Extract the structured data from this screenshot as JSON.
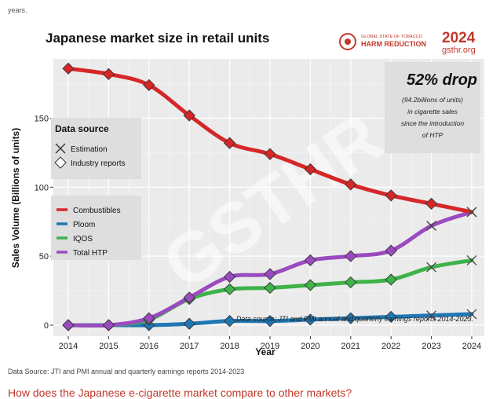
{
  "page": {
    "top_text": "years.",
    "source_line": "Data Source: JTI and PMI annual and quarterly earnings reports 2014-2023",
    "bottom_cut": "How does the Japanese e-cigarette market compare to other markets?"
  },
  "logo": {
    "line1": "GLOBAL STATE OF TOBACCO",
    "line2": "HARM REDUCTION",
    "year": "2024",
    "site": "gsthr.org",
    "watermark": "GSTHR"
  },
  "annotation": {
    "headline": "52% drop",
    "lines": [
      "(94.2billions of units)",
      "in cigarette sales",
      "since the introduction",
      "of HTP"
    ]
  },
  "legend_markers": {
    "title": "Data source",
    "items": [
      {
        "label": "Estimation",
        "icon": "x-mark-icon"
      },
      {
        "label": "Industry reports",
        "icon": "diamond-icon"
      }
    ]
  },
  "colors": {
    "combustibles": "#d62728",
    "ploom": "#1f77b4",
    "iqos": "#3fb24a",
    "total_htp": "#9b4bc0"
  },
  "chart_data": {
    "type": "line",
    "title": "Japanese market size in retail units",
    "xlabel": "Year",
    "ylabel": "Sales Volume (Billions of units)",
    "x": [
      2014,
      2015,
      2016,
      2017,
      2018,
      2019,
      2020,
      2021,
      2022,
      2023,
      2024
    ],
    "xlim": [
      2014,
      2024
    ],
    "ylim": [
      -8,
      193
    ],
    "yticks": [
      0,
      50,
      100,
      150
    ],
    "grid": true,
    "legend_position": "left",
    "note": "Data source: JTI and PMI annual and quarterly earnings reports 2014-2023.",
    "series": [
      {
        "name": "Combustibles",
        "color": "#d62728",
        "values": [
          186,
          182,
          174,
          152,
          132,
          124,
          113,
          102,
          94,
          88,
          82
        ],
        "estimated": [
          false,
          false,
          false,
          false,
          false,
          false,
          false,
          false,
          false,
          false,
          true
        ]
      },
      {
        "name": "Ploom",
        "color": "#1f77b4",
        "values": [
          0,
          0,
          0,
          1,
          3,
          3,
          4,
          5,
          6,
          7,
          8
        ],
        "estimated": [
          false,
          false,
          false,
          false,
          false,
          false,
          false,
          false,
          false,
          true,
          true
        ]
      },
      {
        "name": "IQOS",
        "color": "#3fb24a",
        "values": [
          0,
          0,
          4,
          19,
          26,
          27,
          29,
          31,
          33,
          42,
          47
        ],
        "estimated": [
          false,
          false,
          false,
          false,
          false,
          false,
          false,
          false,
          false,
          true,
          true
        ]
      },
      {
        "name": "Total HTP",
        "color": "#9b4bc0",
        "values": [
          0,
          0,
          5,
          20,
          35,
          37,
          47,
          50,
          54,
          72,
          82
        ],
        "estimated": [
          false,
          false,
          false,
          false,
          false,
          false,
          false,
          false,
          false,
          true,
          true
        ]
      }
    ]
  }
}
